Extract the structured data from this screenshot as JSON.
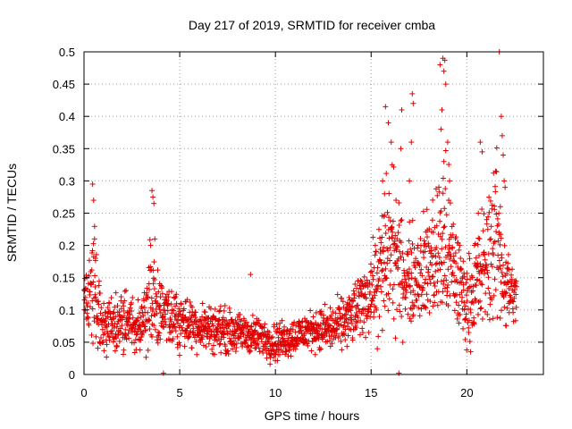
{
  "chart_data": {
    "type": "scatter",
    "title": "Day 217 of 2019, SRMTID for receiver cmba",
    "xlabel": "GPS time / hours",
    "ylabel": "SRMTID / TECUs",
    "xlim": [
      0,
      24
    ],
    "ylim": [
      0,
      0.5
    ],
    "x_ticks": [
      0,
      5,
      10,
      15,
      20
    ],
    "x_tick_labels": [
      "0",
      "5",
      "10",
      "15",
      "20"
    ],
    "y_ticks": [
      0,
      0.05,
      0.1,
      0.15,
      0.2,
      0.25,
      0.3,
      0.35,
      0.4,
      0.45,
      0.5
    ],
    "y_tick_labels": [
      "0",
      "0.05",
      "0.1",
      "0.15",
      "0.2",
      "0.25",
      "0.3",
      "0.35",
      "0.4",
      "0.45",
      "0.5"
    ],
    "grid": true,
    "marker": "+",
    "marker_color": "#e00000",
    "series_envelope": {
      "description_hours": "Approximate trend of the per-epoch SRMTID values (median by hour, with spread)",
      "x": [
        0.0,
        0.5,
        1.0,
        2.0,
        3.0,
        3.6,
        4.0,
        5.0,
        6.0,
        7.0,
        8.0,
        9.0,
        10.0,
        11.0,
        12.0,
        13.0,
        14.0,
        14.5,
        15.0,
        15.5,
        16.0,
        16.5,
        17.0,
        18.0,
        18.8,
        19.5,
        20.0,
        20.5,
        21.0,
        21.5,
        22.0,
        22.5
      ],
      "median": [
        0.11,
        0.14,
        0.075,
        0.08,
        0.08,
        0.12,
        0.09,
        0.085,
        0.075,
        0.07,
        0.065,
        0.06,
        0.05,
        0.06,
        0.07,
        0.07,
        0.09,
        0.11,
        0.13,
        0.15,
        0.2,
        0.16,
        0.15,
        0.17,
        0.2,
        0.15,
        0.11,
        0.14,
        0.17,
        0.22,
        0.14,
        0.12
      ],
      "spread": [
        0.03,
        0.07,
        0.025,
        0.03,
        0.03,
        0.08,
        0.035,
        0.03,
        0.025,
        0.025,
        0.02,
        0.02,
        0.02,
        0.02,
        0.02,
        0.025,
        0.03,
        0.035,
        0.04,
        0.07,
        0.09,
        0.06,
        0.05,
        0.06,
        0.1,
        0.06,
        0.04,
        0.06,
        0.07,
        0.09,
        0.05,
        0.03
      ]
    },
    "outliers": [
      {
        "x": 0.45,
        "y": 0.295
      },
      {
        "x": 0.5,
        "y": 0.27
      },
      {
        "x": 0.55,
        "y": 0.21
      },
      {
        "x": 0.6,
        "y": 0.18
      },
      {
        "x": 3.55,
        "y": 0.285
      },
      {
        "x": 3.6,
        "y": 0.275
      },
      {
        "x": 3.65,
        "y": 0.265
      },
      {
        "x": 3.7,
        "y": 0.21
      },
      {
        "x": 8.7,
        "y": 0.155
      },
      {
        "x": 4.15,
        "y": 0.002
      },
      {
        "x": 15.75,
        "y": 0.415
      },
      {
        "x": 15.9,
        "y": 0.39
      },
      {
        "x": 16.05,
        "y": 0.36
      },
      {
        "x": 16.1,
        "y": 0.325
      },
      {
        "x": 16.45,
        "y": 0.002
      },
      {
        "x": 16.6,
        "y": 0.41
      },
      {
        "x": 16.55,
        "y": 0.35
      },
      {
        "x": 17.15,
        "y": 0.435
      },
      {
        "x": 17.2,
        "y": 0.42
      },
      {
        "x": 17.1,
        "y": 0.36
      },
      {
        "x": 18.6,
        "y": 0.48
      },
      {
        "x": 18.75,
        "y": 0.49
      },
      {
        "x": 18.85,
        "y": 0.487
      },
      {
        "x": 18.8,
        "y": 0.47
      },
      {
        "x": 18.9,
        "y": 0.45
      },
      {
        "x": 18.7,
        "y": 0.41
      },
      {
        "x": 18.65,
        "y": 0.38
      },
      {
        "x": 19.0,
        "y": 0.36
      },
      {
        "x": 19.1,
        "y": 0.3
      },
      {
        "x": 19.05,
        "y": 0.27
      },
      {
        "x": 18.8,
        "y": 0.33
      },
      {
        "x": 20.7,
        "y": 0.36
      },
      {
        "x": 20.8,
        "y": 0.345
      },
      {
        "x": 21.7,
        "y": 0.5
      },
      {
        "x": 21.8,
        "y": 0.4
      },
      {
        "x": 21.85,
        "y": 0.37
      },
      {
        "x": 21.9,
        "y": 0.34
      },
      {
        "x": 21.95,
        "y": 0.3
      },
      {
        "x": 22.0,
        "y": 0.29
      },
      {
        "x": 21.75,
        "y": 0.26
      },
      {
        "x": 20.6,
        "y": 0.25
      },
      {
        "x": 15.6,
        "y": 0.3
      },
      {
        "x": 15.7,
        "y": 0.28
      },
      {
        "x": 16.3,
        "y": 0.27
      },
      {
        "x": 17.0,
        "y": 0.3
      }
    ]
  }
}
